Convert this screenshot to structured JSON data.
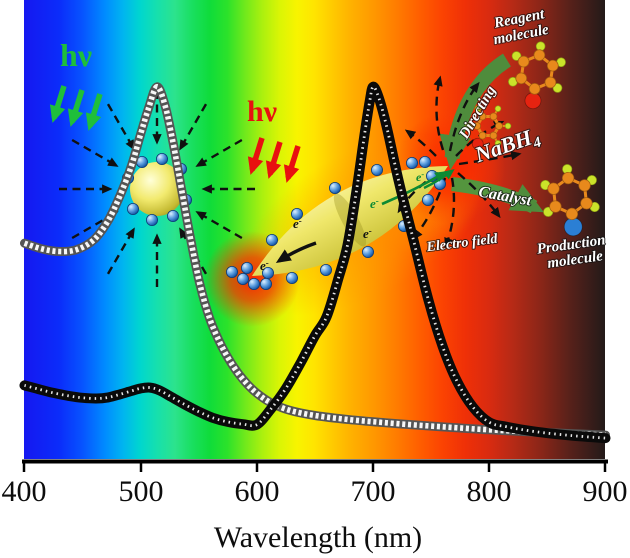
{
  "figure": {
    "labels": {
      "hv": "hν",
      "reagent_1": "Reagent",
      "reagent_2": "molecule",
      "production_1": "Production",
      "production_2": "molecule",
      "directing": "Directing",
      "catalyst": "Catalyst",
      "nabh4_main": "NaBH",
      "nabh4_sub": "4",
      "electro_field": "Electro field",
      "electron_base": "e",
      "electron_sup": "-"
    },
    "colors": {
      "hv_green": "#1fbf3a",
      "hv_red": "#e81010",
      "banner_green": "#4f8c3c",
      "electron_green": "#0c8a33",
      "gold_sphere": "#e9e25f",
      "electron_blue": "#2f74c0",
      "glow_red": "#ff2d00",
      "halo_orange": "#ff9000",
      "carbon_orange": "#e8891c",
      "hydrogen_yellow": "#cbe32a",
      "reagent_substituent_red": "#e62310",
      "production_substituent_blue": "#2b7fd4",
      "curve_sphere_beads": "#555555",
      "curve_rod_beads": "#0a0a0a"
    }
  },
  "chart_data": {
    "type": "line",
    "title": "",
    "xlabel": "Wavelength (nm)",
    "ylabel": "",
    "xlim": [
      400,
      900
    ],
    "ylim": [
      0,
      1
    ],
    "x_ticks": [
      400,
      500,
      600,
      700,
      800,
      900
    ],
    "background": "visible-spectrum-gradient",
    "series": [
      {
        "name": "nanosphere spectrum (white bead curve, peak ~514 nm)",
        "style": "white-beads",
        "points": [
          [
            400,
            0.575
          ],
          [
            415,
            0.56
          ],
          [
            430,
            0.553
          ],
          [
            445,
            0.558
          ],
          [
            460,
            0.585
          ],
          [
            472,
            0.635
          ],
          [
            482,
            0.7
          ],
          [
            492,
            0.78
          ],
          [
            500,
            0.865
          ],
          [
            507,
            0.935
          ],
          [
            514,
            0.99
          ],
          [
            521,
            0.94
          ],
          [
            528,
            0.84
          ],
          [
            535,
            0.72
          ],
          [
            543,
            0.585
          ],
          [
            551,
            0.465
          ],
          [
            560,
            0.37
          ],
          [
            570,
            0.3
          ],
          [
            580,
            0.247
          ],
          [
            590,
            0.207
          ],
          [
            600,
            0.177
          ],
          [
            612,
            0.152
          ],
          [
            628,
            0.132
          ],
          [
            650,
            0.118
          ],
          [
            680,
            0.107
          ],
          [
            710,
            0.099
          ],
          [
            740,
            0.092
          ],
          [
            770,
            0.086
          ],
          [
            800,
            0.08
          ],
          [
            840,
            0.074
          ],
          [
            870,
            0.07
          ],
          [
            900,
            0.066
          ]
        ]
      },
      {
        "name": "nanorod spectrum (black bead curve, peaks ~508 nm and ~700 nm)",
        "style": "black-beads",
        "points": [
          [
            400,
            0.198
          ],
          [
            412,
            0.188
          ],
          [
            425,
            0.178
          ],
          [
            438,
            0.17
          ],
          [
            450,
            0.165
          ],
          [
            462,
            0.163
          ],
          [
            472,
            0.166
          ],
          [
            482,
            0.174
          ],
          [
            492,
            0.183
          ],
          [
            500,
            0.19
          ],
          [
            508,
            0.192
          ],
          [
            516,
            0.185
          ],
          [
            526,
            0.168
          ],
          [
            538,
            0.147
          ],
          [
            550,
            0.128
          ],
          [
            562,
            0.112
          ],
          [
            575,
            0.101
          ],
          [
            588,
            0.095
          ],
          [
            600,
            0.094
          ],
          [
            612,
            0.135
          ],
          [
            625,
            0.19
          ],
          [
            638,
            0.26
          ],
          [
            650,
            0.33
          ],
          [
            660,
            0.38
          ],
          [
            670,
            0.48
          ],
          [
            678,
            0.57
          ],
          [
            686,
            0.72
          ],
          [
            692,
            0.85
          ],
          [
            697,
            0.95
          ],
          [
            700,
            0.99
          ],
          [
            705,
            0.96
          ],
          [
            712,
            0.88
          ],
          [
            722,
            0.74
          ],
          [
            735,
            0.58
          ],
          [
            748,
            0.42
          ],
          [
            760,
            0.3
          ],
          [
            772,
            0.21
          ],
          [
            786,
            0.14
          ],
          [
            800,
            0.1
          ],
          [
            815,
            0.088
          ],
          [
            840,
            0.075
          ],
          [
            870,
            0.065
          ],
          [
            900,
            0.058
          ]
        ]
      }
    ]
  }
}
